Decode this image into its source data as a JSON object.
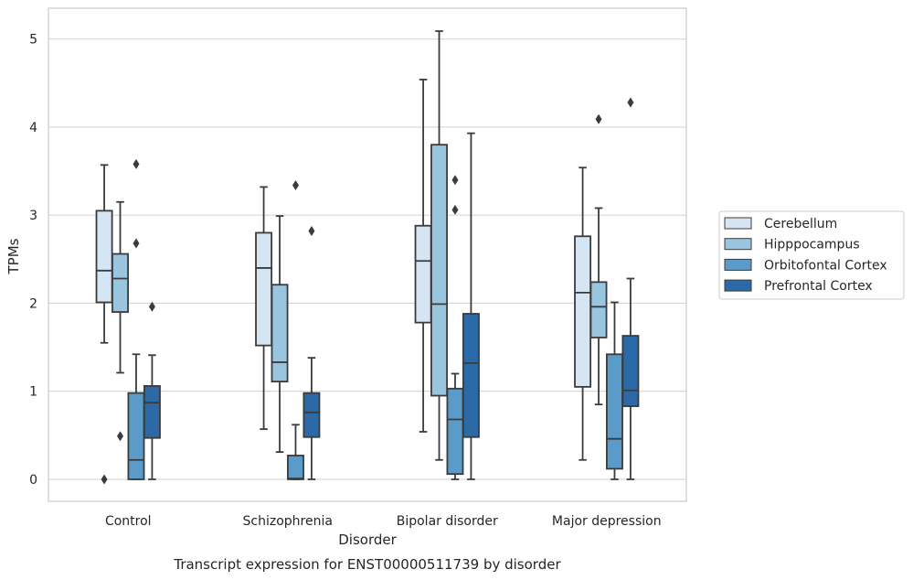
{
  "chart_data": {
    "type": "boxplot",
    "title": "",
    "caption": "Transcript expression for ENST00000511739 by disorder",
    "xlabel": "Disorder",
    "ylabel": "TPMs",
    "ylim": [
      -0.25,
      5.35
    ],
    "yticks": [
      0,
      1,
      2,
      3,
      4,
      5
    ],
    "grid": "horizontal",
    "legend_position": "right",
    "categories": [
      "Control",
      "Schizophrenia",
      "Bipolar disorder",
      "Major depression"
    ],
    "series": [
      {
        "name": "Cerebellum",
        "color": "#d6e5f4",
        "boxes": [
          {
            "whisker_low": 1.55,
            "q1": 2.01,
            "median": 2.37,
            "q3": 3.05,
            "whisker_high": 3.57,
            "outliers": [
              0.0
            ]
          },
          {
            "whisker_low": 0.57,
            "q1": 1.52,
            "median": 2.4,
            "q3": 2.8,
            "whisker_high": 3.32,
            "outliers": []
          },
          {
            "whisker_low": 0.54,
            "q1": 1.78,
            "median": 2.48,
            "q3": 2.88,
            "whisker_high": 4.54,
            "outliers": []
          },
          {
            "whisker_low": 0.22,
            "q1": 1.05,
            "median": 2.12,
            "q3": 2.76,
            "whisker_high": 3.54,
            "outliers": []
          }
        ]
      },
      {
        "name": "Hipppocampus",
        "color": "#9ac5df",
        "boxes": [
          {
            "whisker_low": 1.21,
            "q1": 1.9,
            "median": 2.28,
            "q3": 2.56,
            "whisker_high": 3.15,
            "outliers": [
              0.49
            ]
          },
          {
            "whisker_low": 0.31,
            "q1": 1.11,
            "median": 1.33,
            "q3": 2.21,
            "whisker_high": 2.99,
            "outliers": []
          },
          {
            "whisker_low": 0.22,
            "q1": 0.95,
            "median": 1.99,
            "q3": 3.8,
            "whisker_high": 5.09,
            "outliers": []
          },
          {
            "whisker_low": 0.85,
            "q1": 1.61,
            "median": 1.96,
            "q3": 2.24,
            "whisker_high": 3.08,
            "outliers": [
              4.09
            ]
          }
        ]
      },
      {
        "name": "Orbitofontal Cortex",
        "color": "#5a9bc9",
        "boxes": [
          {
            "whisker_low": 0.0,
            "q1": 0.0,
            "median": 0.22,
            "q3": 0.98,
            "whisker_high": 1.42,
            "outliers": [
              2.68,
              3.58
            ]
          },
          {
            "whisker_low": 0.0,
            "q1": 0.0,
            "median": 0.01,
            "q3": 0.27,
            "whisker_high": 0.62,
            "outliers": [
              3.34
            ]
          },
          {
            "whisker_low": 0.0,
            "q1": 0.06,
            "median": 0.68,
            "q3": 1.03,
            "whisker_high": 1.2,
            "outliers": [
              3.06,
              3.4
            ]
          },
          {
            "whisker_low": 0.0,
            "q1": 0.12,
            "median": 0.46,
            "q3": 1.42,
            "whisker_high": 2.01,
            "outliers": []
          }
        ]
      },
      {
        "name": "Prefrontal Cortex",
        "color": "#2b6aa6",
        "boxes": [
          {
            "whisker_low": 0.0,
            "q1": 0.47,
            "median": 0.87,
            "q3": 1.06,
            "whisker_high": 1.41,
            "outliers": [
              1.96
            ]
          },
          {
            "whisker_low": 0.0,
            "q1": 0.48,
            "median": 0.76,
            "q3": 0.98,
            "whisker_high": 1.38,
            "outliers": [
              2.82
            ]
          },
          {
            "whisker_low": 0.0,
            "q1": 0.48,
            "median": 1.32,
            "q3": 1.88,
            "whisker_high": 3.93,
            "outliers": []
          },
          {
            "whisker_low": 0.0,
            "q1": 0.83,
            "median": 1.01,
            "q3": 1.63,
            "whisker_high": 2.28,
            "outliers": [
              4.28
            ]
          }
        ]
      }
    ]
  }
}
